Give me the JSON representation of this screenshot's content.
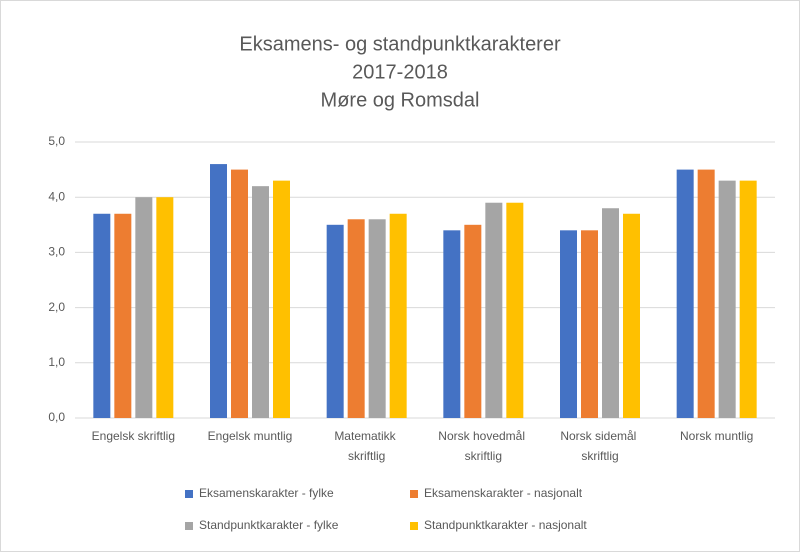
{
  "chart_data": {
    "type": "bar",
    "title": [
      "Eksamens- og standpunktkarakterer",
      "2017-2018",
      "Møre og Romsdal"
    ],
    "categories": [
      "Engelsk skriftlig",
      "Engelsk muntlig",
      "Matematikk skriftlig",
      "Norsk hovedmål skriftlig",
      "Norsk sidemål skriftlig",
      "Norsk muntlig"
    ],
    "series": [
      {
        "name": "Eksamenskarakter - fylke",
        "color": "#4472c4",
        "values": [
          3.7,
          4.6,
          3.5,
          3.4,
          3.4,
          4.5
        ]
      },
      {
        "name": "Eksamenskarakter - nasjonalt",
        "color": "#ed7d31",
        "values": [
          3.7,
          4.5,
          3.6,
          3.5,
          3.4,
          4.5
        ]
      },
      {
        "name": "Standpunktkarakter - fylke",
        "color": "#a5a5a5",
        "values": [
          4.0,
          4.2,
          3.6,
          3.9,
          3.8,
          4.3
        ]
      },
      {
        "name": "Standpunktkarakter - nasjonalt",
        "color": "#ffc000",
        "values": [
          4.0,
          4.3,
          3.7,
          3.9,
          3.7,
          4.3
        ]
      }
    ],
    "ylim": [
      0,
      5
    ],
    "yticks": [
      {
        "value": 0,
        "label": "0,0"
      },
      {
        "value": 1,
        "label": "1,0"
      },
      {
        "value": 2,
        "label": "2,0"
      },
      {
        "value": 3,
        "label": "3,0"
      },
      {
        "value": 4,
        "label": "4,0"
      },
      {
        "value": 5,
        "label": "5,0"
      }
    ],
    "grid": true,
    "legend": "bottom"
  }
}
